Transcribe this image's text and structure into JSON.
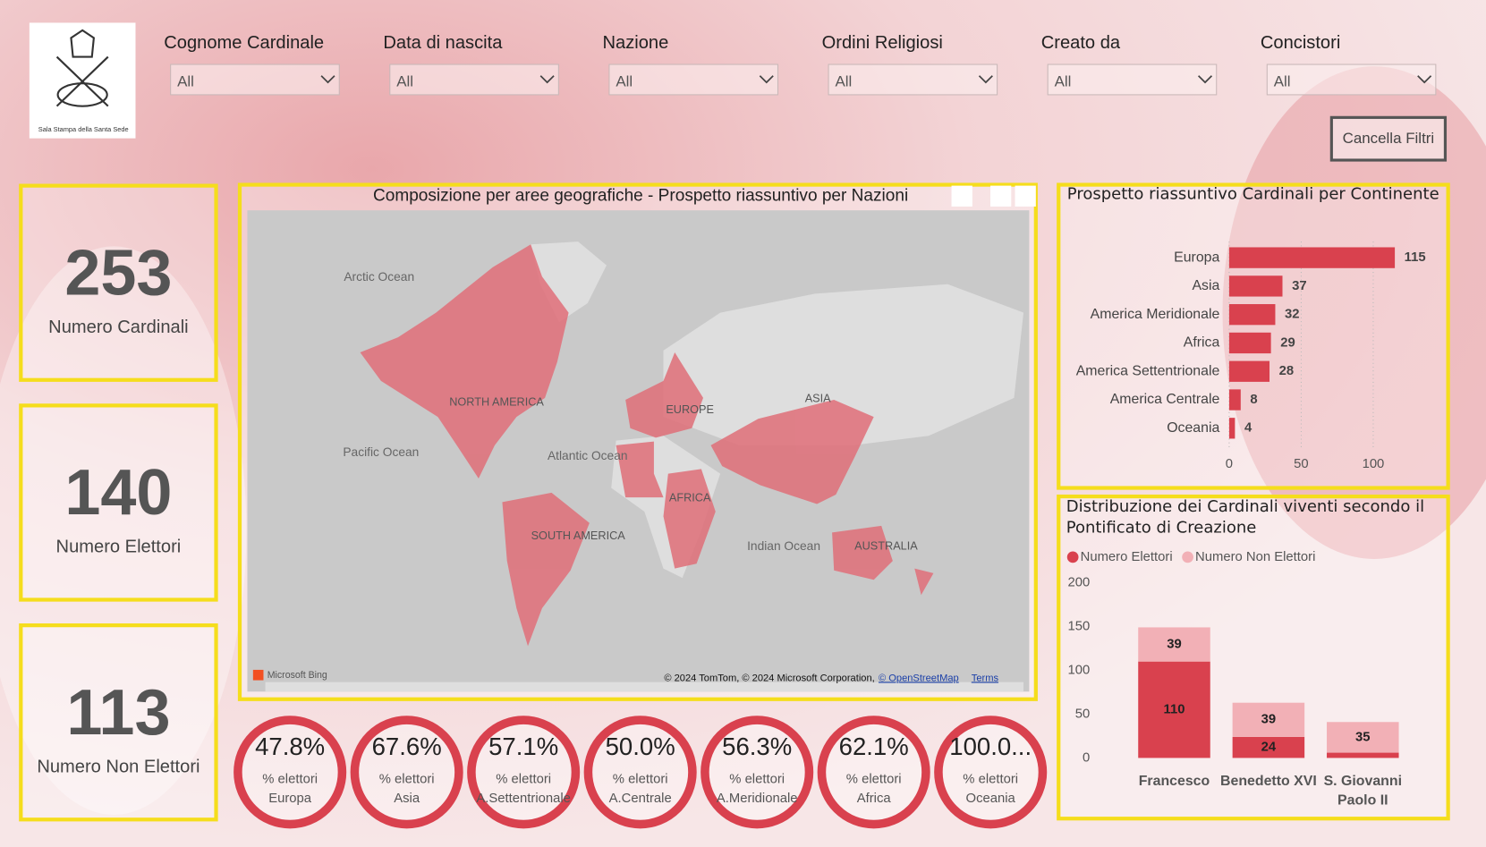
{
  "logo": {
    "caption": "Sala Stampa della Santa Sede"
  },
  "filters": [
    {
      "label": "Cognome Cardinale",
      "value": "All"
    },
    {
      "label": "Data di nascita",
      "value": "All"
    },
    {
      "label": "Nazione",
      "value": "All"
    },
    {
      "label": "Ordini Religiosi",
      "value": "All"
    },
    {
      "label": "Creato da",
      "value": "All"
    },
    {
      "label": "Concistori",
      "value": "All"
    }
  ],
  "button": "Cancella Filtri",
  "kpis": [
    {
      "value": 253,
      "label": "Numero Cardinali"
    },
    {
      "value": 140,
      "label": "Numero Elettori"
    },
    {
      "value": 113,
      "label": "Numero Non Elettori"
    }
  ],
  "map": {
    "title": "Composizione per aree geografiche - Prospetto riassuntivo per Nazioni",
    "labels": [
      "Arctic Ocean",
      "NORTH AMERICA",
      "EUROPE",
      "ASIA",
      "Pacific Ocean",
      "Atlantic Ocean",
      "AFRICA",
      "SOUTH AMERICA",
      "Indian Ocean",
      "AUSTRALIA"
    ],
    "brand": "Microsoft Bing",
    "attribution": "© 2024 TomTom, © 2024 Microsoft Corporation,",
    "link1": "© OpenStreetMap",
    "link2": "Terms"
  },
  "gauges": [
    {
      "value": "47.8%",
      "label": "% elettori",
      "area": "Europa"
    },
    {
      "value": "67.6%",
      "label": "% elettori",
      "area": "Asia"
    },
    {
      "value": "57.1%",
      "label": "% elettori",
      "area": "A.Settentrionale"
    },
    {
      "value": "50.0%",
      "label": "% elettori",
      "area": "A.Centrale"
    },
    {
      "value": "56.3%",
      "label": "% elettori",
      "area": "A.Meridionale"
    },
    {
      "value": "62.1%",
      "label": "% elettori",
      "area": "Africa"
    },
    {
      "value": "100.0...",
      "label": "% elettori",
      "area": "Oceania"
    }
  ],
  "chart_data": [
    {
      "type": "hbar",
      "title": "Prospetto riassuntivo Cardinali per Continente",
      "categories": [
        "Europa",
        "Asia",
        "America Meridionale",
        "Africa",
        "America Settentrionale",
        "America Centrale",
        "Oceania"
      ],
      "values": [
        115,
        37,
        32,
        29,
        28,
        8,
        4
      ],
      "color": "#d9414e",
      "xlim": [
        0,
        120
      ],
      "xticks": [
        0,
        50,
        100
      ],
      "grid": true
    },
    {
      "type": "stacked_bar",
      "title": "Distribuzione dei Cardinali viventi secondo il Pontificato di Creazione",
      "categories": [
        "Francesco",
        "Benedetto XVI",
        "S. Giovanni Paolo II"
      ],
      "series": [
        {
          "name": "Numero Elettori",
          "color": "#d9414e",
          "values": [
            110,
            24,
            6
          ]
        },
        {
          "name": "Numero Non Elettori",
          "color": "#f2b0b6",
          "values": [
            39,
            39,
            35
          ]
        }
      ],
      "ylim": [
        0,
        200
      ],
      "yticks": [
        0,
        50,
        100,
        150,
        200
      ],
      "legend": "top-left"
    }
  ]
}
